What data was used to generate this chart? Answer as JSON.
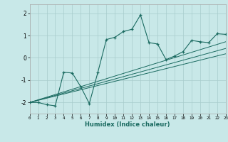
{
  "xlabel": "Humidex (Indice chaleur)",
  "bg_color": "#c8e8e8",
  "grid_color": "#a8cccc",
  "line_color": "#1a6a60",
  "xlim": [
    0,
    23
  ],
  "ylim": [
    -2.5,
    2.4
  ],
  "xticks": [
    0,
    1,
    2,
    3,
    4,
    5,
    6,
    7,
    8,
    9,
    10,
    11,
    12,
    13,
    14,
    15,
    16,
    17,
    18,
    19,
    20,
    21,
    22,
    23
  ],
  "yticks": [
    -2,
    -1,
    0,
    1,
    2
  ],
  "main_x": [
    0,
    1,
    2,
    3,
    4,
    5,
    6,
    7,
    8,
    9,
    10,
    11,
    12,
    13,
    14,
    15,
    16,
    17,
    18,
    19,
    20,
    21,
    22,
    23
  ],
  "main_y": [
    -2.0,
    -2.0,
    -2.1,
    -2.15,
    -0.65,
    -0.68,
    -1.3,
    -2.05,
    -0.65,
    0.82,
    0.92,
    1.18,
    1.28,
    1.92,
    0.68,
    0.62,
    -0.08,
    0.08,
    0.28,
    0.78,
    0.72,
    0.68,
    1.08,
    1.05
  ],
  "ref_lines": [
    {
      "x": [
        0,
        23
      ],
      "y": [
        -2.0,
        0.72
      ]
    },
    {
      "x": [
        0,
        23
      ],
      "y": [
        -2.0,
        0.42
      ]
    },
    {
      "x": [
        0,
        23
      ],
      "y": [
        -2.0,
        0.18
      ]
    }
  ]
}
